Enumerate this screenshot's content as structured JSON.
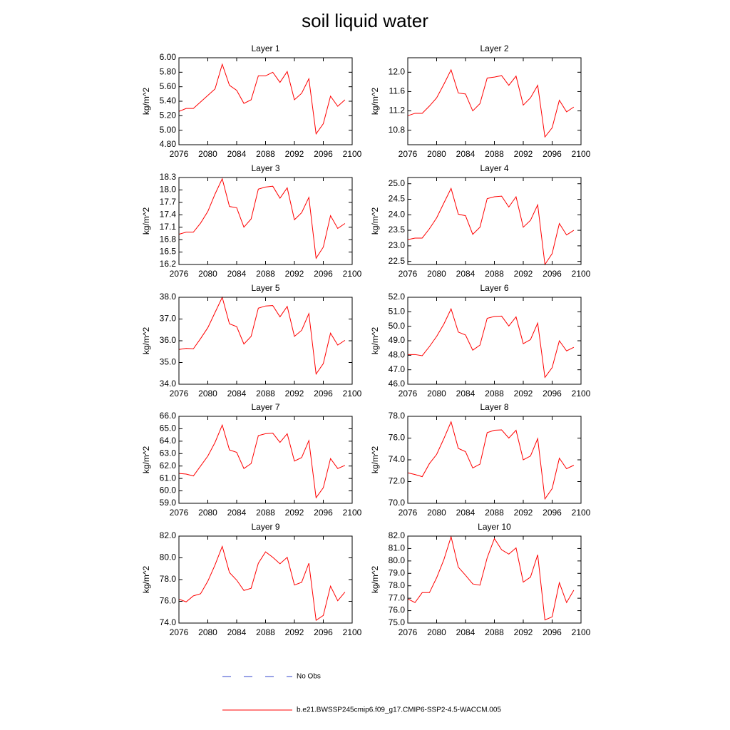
{
  "title": "soil liquid water",
  "legend": [
    {
      "name": "No Obs",
      "color": "#3344cc",
      "dash": true
    },
    {
      "name": "b.e21.BWSSP245cmip6.f09_g17.CMIP6-SSP2-4.5-WACCM.005",
      "color": "#ff0000"
    }
  ],
  "chart_data": [
    {
      "type": "line",
      "title": "Layer 1",
      "ylabel": "kg/m^2",
      "x": [
        2076,
        2077,
        2078,
        2079,
        2080,
        2081,
        2082,
        2083,
        2084,
        2085,
        2086,
        2087,
        2088,
        2089,
        2090,
        2091,
        2092,
        2093,
        2094,
        2095,
        2096,
        2097,
        2098,
        2099
      ],
      "series": [
        {
          "color": "#ff0000",
          "values": [
            5.26,
            5.3,
            5.3,
            5.39,
            5.48,
            5.57,
            5.91,
            5.62,
            5.55,
            5.37,
            5.42,
            5.75,
            5.75,
            5.8,
            5.66,
            5.81,
            5.42,
            5.51,
            5.71,
            4.95,
            5.09,
            5.47,
            5.33,
            5.42
          ]
        }
      ],
      "xlim": [
        2076,
        2100
      ],
      "xticks": [
        2076,
        2080,
        2084,
        2088,
        2092,
        2096,
        2100
      ],
      "ylim": [
        4.8,
        6.0
      ],
      "yticks": [
        {
          "value": 4.8,
          "label": "4.80"
        },
        {
          "value": 5,
          "label": "5.00"
        },
        {
          "value": 5.2,
          "label": "5.20"
        },
        {
          "value": 5.4,
          "label": "5.40"
        },
        {
          "value": 5.6,
          "label": "5.60"
        },
        {
          "value": 5.8,
          "label": "5.80"
        },
        {
          "value": 6,
          "label": "6.00"
        }
      ]
    },
    {
      "type": "line",
      "title": "Layer 2",
      "ylabel": "kg/m^2",
      "x": [
        2076,
        2077,
        2078,
        2079,
        2080,
        2081,
        2082,
        2083,
        2084,
        2085,
        2086,
        2087,
        2088,
        2089,
        2090,
        2091,
        2092,
        2093,
        2094,
        2095,
        2096,
        2097,
        2098,
        2099
      ],
      "series": [
        {
          "color": "#ff0000",
          "values": [
            11.1,
            11.15,
            11.15,
            11.3,
            11.47,
            11.75,
            12.05,
            11.57,
            11.55,
            11.2,
            11.35,
            11.88,
            11.9,
            11.93,
            11.73,
            11.92,
            11.32,
            11.47,
            11.73,
            10.66,
            10.85,
            11.42,
            11.18,
            11.28
          ]
        }
      ],
      "xlim": [
        2076,
        2100
      ],
      "xticks": [
        2076,
        2080,
        2084,
        2088,
        2092,
        2096,
        2100
      ],
      "ylim": [
        10.5,
        12.3
      ],
      "yticks": [
        10.8,
        11.2,
        11.6,
        {
          "value": 12,
          "label": "12.0"
        }
      ]
    },
    {
      "type": "line",
      "title": "Layer 3",
      "ylabel": "kg/m^2",
      "x": [
        2076,
        2077,
        2078,
        2079,
        2080,
        2081,
        2082,
        2083,
        2084,
        2085,
        2086,
        2087,
        2088,
        2089,
        2090,
        2091,
        2092,
        2093,
        2094,
        2095,
        2096,
        2097,
        2098,
        2099
      ],
      "series": [
        {
          "color": "#ff0000",
          "values": [
            16.93,
            16.98,
            16.98,
            17.2,
            17.48,
            17.9,
            18.27,
            17.6,
            17.57,
            17.1,
            17.3,
            18.02,
            18.07,
            18.09,
            17.8,
            18.05,
            17.28,
            17.45,
            17.82,
            16.35,
            16.62,
            17.38,
            17.07,
            17.19
          ]
        }
      ],
      "xlim": [
        2076,
        2100
      ],
      "xticks": [
        2076,
        2080,
        2084,
        2088,
        2092,
        2096,
        2100
      ],
      "ylim": [
        16.2,
        18.3
      ],
      "yticks": [
        16.2,
        16.5,
        16.8,
        17.1,
        17.4,
        17.7,
        {
          "value": 18,
          "label": "18.0"
        },
        18.3
      ]
    },
    {
      "type": "line",
      "title": "Layer 4",
      "ylabel": "kg/m^2",
      "x": [
        2076,
        2077,
        2078,
        2079,
        2080,
        2081,
        2082,
        2083,
        2084,
        2085,
        2086,
        2087,
        2088,
        2089,
        2090,
        2091,
        2092,
        2093,
        2094,
        2095,
        2096,
        2097,
        2098,
        2099
      ],
      "series": [
        {
          "color": "#ff0000",
          "values": [
            23.2,
            23.25,
            23.25,
            23.55,
            23.9,
            24.38,
            24.85,
            24.02,
            23.97,
            23.37,
            23.6,
            24.52,
            24.58,
            24.6,
            24.25,
            24.58,
            23.6,
            23.82,
            24.32,
            22.4,
            22.75,
            23.72,
            23.35,
            23.5
          ]
        }
      ],
      "xlim": [
        2076,
        2100
      ],
      "xticks": [
        2076,
        2080,
        2084,
        2088,
        2092,
        2096,
        2100
      ],
      "ylim": [
        22.4,
        25.2
      ],
      "yticks": [
        22.5,
        {
          "value": 23,
          "label": "23.0"
        },
        23.5,
        {
          "value": 24,
          "label": "24.0"
        },
        24.5,
        {
          "value": 25,
          "label": "25.0"
        }
      ]
    },
    {
      "type": "line",
      "title": "Layer 5",
      "ylabel": "kg/m^2",
      "x": [
        2076,
        2077,
        2078,
        2079,
        2080,
        2081,
        2082,
        2083,
        2084,
        2085,
        2086,
        2087,
        2088,
        2089,
        2090,
        2091,
        2092,
        2093,
        2094,
        2095,
        2096,
        2097,
        2098,
        2099
      ],
      "series": [
        {
          "color": "#ff0000",
          "values": [
            35.6,
            35.65,
            35.63,
            36.1,
            36.6,
            37.3,
            38.0,
            36.78,
            36.65,
            35.85,
            36.2,
            37.5,
            37.6,
            37.62,
            37.1,
            37.58,
            36.2,
            36.48,
            37.25,
            34.47,
            34.95,
            36.35,
            35.8,
            36.02
          ]
        }
      ],
      "xlim": [
        2076,
        2100
      ],
      "xticks": [
        2076,
        2080,
        2084,
        2088,
        2092,
        2096,
        2100
      ],
      "ylim": [
        34,
        38
      ],
      "yticks": [
        {
          "value": 34,
          "label": "34.0"
        },
        {
          "value": 35,
          "label": "35.0"
        },
        {
          "value": 36,
          "label": "36.0"
        },
        {
          "value": 37,
          "label": "37.0"
        },
        {
          "value": 38,
          "label": "38.0"
        }
      ]
    },
    {
      "type": "line",
      "title": "Layer 6",
      "ylabel": "kg/m^2",
      "x": [
        2076,
        2077,
        2078,
        2079,
        2080,
        2081,
        2082,
        2083,
        2084,
        2085,
        2086,
        2087,
        2088,
        2089,
        2090,
        2091,
        2092,
        2093,
        2094,
        2095,
        2096,
        2097,
        2098,
        2099
      ],
      "series": [
        {
          "color": "#ff0000",
          "values": [
            48.05,
            48.05,
            47.97,
            48.6,
            49.3,
            50.15,
            51.2,
            49.6,
            49.4,
            48.35,
            48.7,
            50.55,
            50.68,
            50.7,
            50.02,
            50.65,
            48.8,
            49.08,
            50.22,
            46.47,
            47.15,
            49.0,
            48.3,
            48.55
          ]
        }
      ],
      "xlim": [
        2076,
        2100
      ],
      "xticks": [
        2076,
        2080,
        2084,
        2088,
        2092,
        2096,
        2100
      ],
      "ylim": [
        46,
        52
      ],
      "yticks": [
        {
          "value": 46,
          "label": "46.0"
        },
        {
          "value": 47,
          "label": "47.0"
        },
        {
          "value": 48,
          "label": "48.0"
        },
        {
          "value": 49,
          "label": "49.0"
        },
        {
          "value": 50,
          "label": "50.0"
        },
        {
          "value": 51,
          "label": "51.0"
        },
        {
          "value": 52,
          "label": "52.0"
        }
      ]
    },
    {
      "type": "line",
      "title": "Layer 7",
      "ylabel": "kg/m^2",
      "x": [
        2076,
        2077,
        2078,
        2079,
        2080,
        2081,
        2082,
        2083,
        2084,
        2085,
        2086,
        2087,
        2088,
        2089,
        2090,
        2091,
        2092,
        2093,
        2094,
        2095,
        2096,
        2097,
        2098,
        2099
      ],
      "series": [
        {
          "color": "#ff0000",
          "values": [
            61.4,
            61.35,
            61.2,
            62.0,
            62.8,
            63.9,
            65.3,
            63.3,
            63.1,
            61.8,
            62.2,
            64.45,
            64.6,
            64.65,
            63.9,
            64.6,
            62.4,
            62.68,
            64.05,
            59.45,
            60.25,
            62.6,
            61.8,
            62.05
          ]
        }
      ],
      "xlim": [
        2076,
        2100
      ],
      "xticks": [
        2076,
        2080,
        2084,
        2088,
        2092,
        2096,
        2100
      ],
      "ylim": [
        59,
        66
      ],
      "yticks": [
        {
          "value": 59,
          "label": "59.0"
        },
        {
          "value": 60,
          "label": "60.0"
        },
        {
          "value": 61,
          "label": "61.0"
        },
        {
          "value": 62,
          "label": "62.0"
        },
        {
          "value": 63,
          "label": "63.0"
        },
        {
          "value": 64,
          "label": "64.0"
        },
        {
          "value": 65,
          "label": "65.0"
        },
        {
          "value": 66,
          "label": "66.0"
        }
      ]
    },
    {
      "type": "line",
      "title": "Layer 8",
      "ylabel": "kg/m^2",
      "x": [
        2076,
        2077,
        2078,
        2079,
        2080,
        2081,
        2082,
        2083,
        2084,
        2085,
        2086,
        2087,
        2088,
        2089,
        2090,
        2091,
        2092,
        2093,
        2094,
        2095,
        2096,
        2097,
        2098,
        2099
      ],
      "series": [
        {
          "color": "#ff0000",
          "values": [
            72.8,
            72.65,
            72.45,
            73.65,
            74.5,
            75.95,
            77.5,
            75.05,
            74.75,
            73.25,
            73.6,
            76.5,
            76.72,
            76.75,
            76.0,
            76.72,
            74.0,
            74.35,
            75.95,
            70.4,
            71.35,
            74.15,
            73.18,
            73.5
          ]
        }
      ],
      "xlim": [
        2076,
        2100
      ],
      "xticks": [
        2076,
        2080,
        2084,
        2088,
        2092,
        2096,
        2100
      ],
      "ylim": [
        70,
        78
      ],
      "yticks": [
        {
          "value": 70,
          "label": "70.0"
        },
        {
          "value": 72,
          "label": "72.0"
        },
        {
          "value": 74,
          "label": "74.0"
        },
        {
          "value": 76,
          "label": "76.0"
        },
        {
          "value": 78,
          "label": "78.0"
        }
      ]
    },
    {
      "type": "line",
      "title": "Layer 9",
      "ylabel": "kg/m^2",
      "x": [
        2076,
        2077,
        2078,
        2079,
        2080,
        2081,
        2082,
        2083,
        2084,
        2085,
        2086,
        2087,
        2088,
        2089,
        2090,
        2091,
        2092,
        2093,
        2094,
        2095,
        2096,
        2097,
        2098,
        2099
      ],
      "series": [
        {
          "color": "#ff0000",
          "values": [
            76.2,
            75.95,
            76.5,
            76.7,
            77.85,
            79.35,
            81.05,
            78.65,
            77.95,
            77.0,
            77.2,
            79.5,
            80.55,
            80.05,
            79.45,
            80.05,
            77.5,
            77.75,
            79.5,
            74.25,
            74.7,
            77.4,
            76.05,
            76.85
          ]
        }
      ],
      "xlim": [
        2076,
        2100
      ],
      "xticks": [
        2076,
        2080,
        2084,
        2088,
        2092,
        2096,
        2100
      ],
      "ylim": [
        74,
        82
      ],
      "yticks": [
        {
          "value": 74,
          "label": "74.0"
        },
        {
          "value": 76,
          "label": "76.0"
        },
        {
          "value": 78,
          "label": "78.0"
        },
        {
          "value": 80,
          "label": "80.0"
        },
        {
          "value": 82,
          "label": "82.0"
        }
      ]
    },
    {
      "type": "line",
      "title": "Layer 10",
      "ylabel": "kg/m^2",
      "x": [
        2076,
        2077,
        2078,
        2079,
        2080,
        2081,
        2082,
        2083,
        2084,
        2085,
        2086,
        2087,
        2088,
        2089,
        2090,
        2091,
        2092,
        2093,
        2094,
        2095,
        2096,
        2097,
        2098,
        2099
      ],
      "series": [
        {
          "color": "#ff0000",
          "values": [
            76.95,
            76.65,
            77.45,
            77.45,
            78.65,
            80.1,
            81.95,
            79.5,
            78.85,
            78.15,
            78.05,
            80.25,
            81.8,
            80.9,
            80.55,
            81.05,
            78.3,
            78.7,
            80.5,
            75.25,
            75.5,
            78.25,
            76.65,
            77.65
          ]
        }
      ],
      "xlim": [
        2076,
        2100
      ],
      "xticks": [
        2076,
        2080,
        2084,
        2088,
        2092,
        2096,
        2100
      ],
      "ylim": [
        75,
        82
      ],
      "yticks": [
        {
          "value": 75,
          "label": "75.0"
        },
        {
          "value": 76,
          "label": "76.0"
        },
        {
          "value": 77,
          "label": "77.0"
        },
        {
          "value": 78,
          "label": "78.0"
        },
        {
          "value": 79,
          "label": "79.0"
        },
        {
          "value": 80,
          "label": "80.0"
        },
        {
          "value": 81,
          "label": "81.0"
        },
        {
          "value": 82,
          "label": "82.0"
        }
      ]
    }
  ]
}
